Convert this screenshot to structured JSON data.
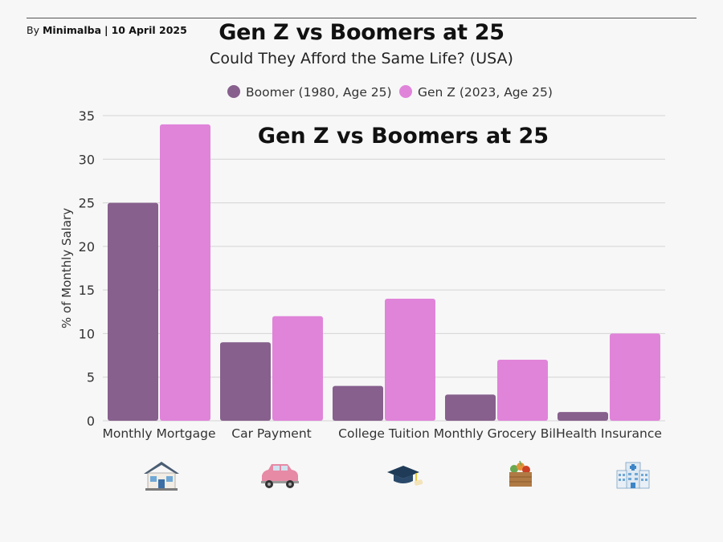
{
  "header": {
    "byline_prefix": "By",
    "byline_author": "Minimalba",
    "byline_separator": "|",
    "byline_date": "10 April 2025",
    "title": "Gen Z vs Boomers at 25",
    "subtitle": "Could They Afford the Same Life? (USA)"
  },
  "icons": [
    "house-icon",
    "car-icon",
    "graduation-cap-icon",
    "grocery-basket-icon",
    "hospital-icon"
  ],
  "colors": {
    "boomer": "#87608d",
    "genz": "#e084d9",
    "grid": "#d4d4d4",
    "background": "#f7f7f7"
  },
  "chart_data": {
    "type": "bar",
    "title": "Gen Z vs Boomers at 25",
    "xlabel": "",
    "ylabel": "% of Monthly Salary",
    "ylim": [
      0,
      35
    ],
    "yticks": [
      0,
      5,
      10,
      15,
      20,
      25,
      30,
      35
    ],
    "grid": true,
    "legend_position": "top-center",
    "categories": [
      "Monthly Mortgage",
      "Car Payment",
      "College Tuition",
      "Monthly Grocery Bill",
      "Health Insurance"
    ],
    "series": [
      {
        "name": "Boomer (1980, Age 25)",
        "values": [
          25,
          9,
          4,
          3,
          1
        ]
      },
      {
        "name": "Gen Z (2023, Age 25)",
        "values": [
          34,
          12,
          14,
          7,
          10
        ]
      }
    ]
  }
}
